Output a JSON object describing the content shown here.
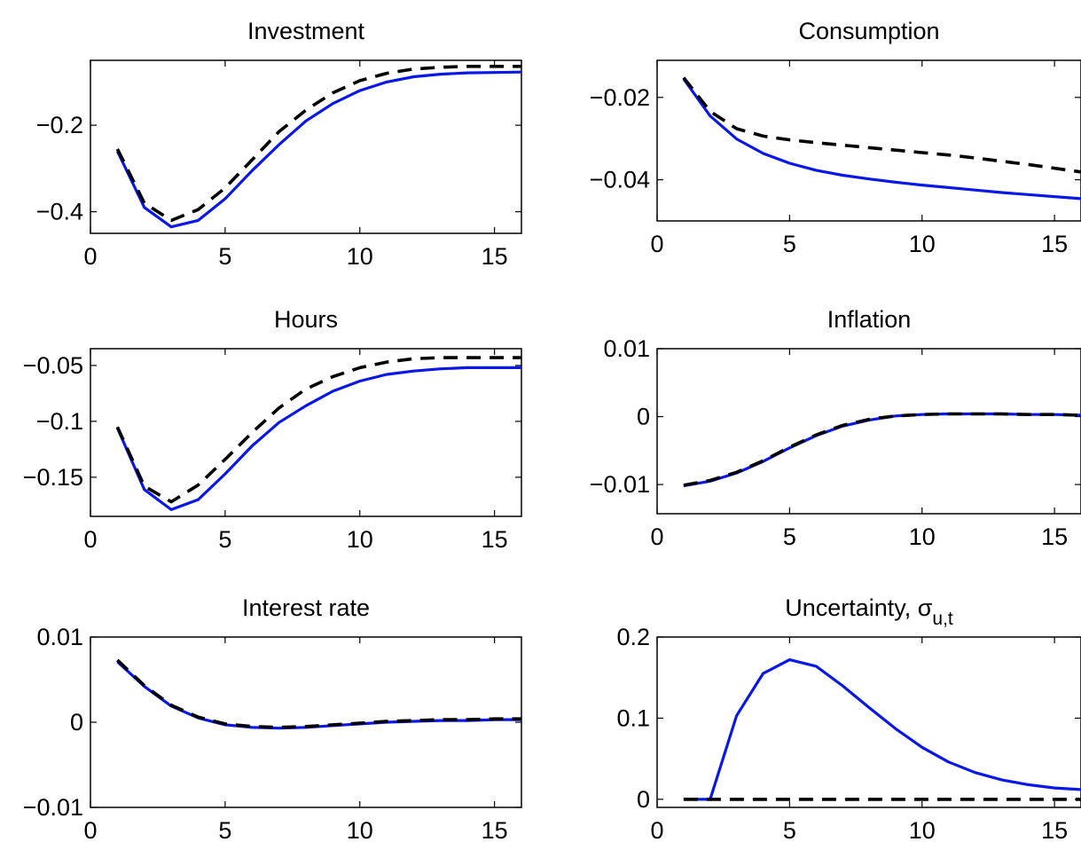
{
  "chart_data": [
    {
      "type": "line",
      "title": "Investment",
      "xlim": [
        0,
        16
      ],
      "ylim": [
        -0.45,
        -0.05
      ],
      "xticks": [
        0,
        5,
        10,
        15
      ],
      "xtick_labels": [
        "0",
        "5",
        "10",
        "15"
      ],
      "yticks": [
        -0.2,
        -0.4
      ],
      "ytick_labels": [
        "−0.2",
        "−0.4"
      ],
      "x": [
        1,
        2,
        3,
        4,
        5,
        6,
        7,
        8,
        9,
        10,
        11,
        12,
        13,
        14,
        15,
        16
      ],
      "series": [
        {
          "values": [
            -0.26,
            -0.39,
            -0.435,
            -0.42,
            -0.37,
            -0.305,
            -0.245,
            -0.19,
            -0.15,
            -0.12,
            -0.1,
            -0.088,
            -0.082,
            -0.079,
            -0.078,
            -0.077
          ],
          "style": "solid",
          "color": "#0a18e6"
        },
        {
          "values": [
            -0.255,
            -0.38,
            -0.42,
            -0.395,
            -0.345,
            -0.28,
            -0.215,
            -0.165,
            -0.125,
            -0.097,
            -0.08,
            -0.07,
            -0.066,
            -0.064,
            -0.064,
            -0.064
          ],
          "style": "dashed",
          "color": "#000000"
        }
      ]
    },
    {
      "type": "line",
      "title": "Consumption",
      "xlim": [
        0,
        16
      ],
      "ylim": [
        -0.05,
        -0.011
      ],
      "xticks": [
        0,
        5,
        10,
        15
      ],
      "xtick_labels": [
        "0",
        "5",
        "10",
        "15"
      ],
      "yticks": [
        -0.02,
        -0.04
      ],
      "ytick_labels": [
        "−0.02",
        "−0.04"
      ],
      "x": [
        1,
        2,
        3,
        4,
        5,
        6,
        7,
        8,
        9,
        10,
        11,
        12,
        13,
        14,
        15,
        16
      ],
      "series": [
        {
          "values": [
            -0.0155,
            -0.0245,
            -0.0301,
            -0.0336,
            -0.036,
            -0.0377,
            -0.0389,
            -0.0398,
            -0.0406,
            -0.0413,
            -0.0419,
            -0.0425,
            -0.0431,
            -0.0436,
            -0.0441,
            -0.0446
          ],
          "style": "solid",
          "color": "#0a18e6"
        },
        {
          "values": [
            -0.0152,
            -0.0234,
            -0.0276,
            -0.0294,
            -0.0303,
            -0.031,
            -0.0316,
            -0.0322,
            -0.0328,
            -0.0334,
            -0.034,
            -0.0347,
            -0.0355,
            -0.0363,
            -0.0372,
            -0.0381
          ],
          "style": "dashed",
          "color": "#000000"
        }
      ]
    },
    {
      "type": "line",
      "title": "Hours",
      "xlim": [
        0,
        16
      ],
      "ylim": [
        -0.185,
        -0.035
      ],
      "xticks": [
        0,
        5,
        10,
        15
      ],
      "xtick_labels": [
        "0",
        "5",
        "10",
        "15"
      ],
      "yticks": [
        -0.05,
        -0.1,
        -0.15
      ],
      "ytick_labels": [
        "−0.05",
        "−0.1",
        "−0.15"
      ],
      "x": [
        1,
        2,
        3,
        4,
        5,
        6,
        7,
        8,
        9,
        10,
        11,
        12,
        13,
        14,
        15,
        16
      ],
      "series": [
        {
          "values": [
            -0.106,
            -0.161,
            -0.179,
            -0.17,
            -0.147,
            -0.122,
            -0.101,
            -0.086,
            -0.073,
            -0.064,
            -0.058,
            -0.055,
            -0.053,
            -0.052,
            -0.052,
            -0.052
          ],
          "style": "solid",
          "color": "#0a18e6"
        },
        {
          "values": [
            -0.105,
            -0.158,
            -0.172,
            -0.157,
            -0.134,
            -0.11,
            -0.088,
            -0.071,
            -0.06,
            -0.052,
            -0.047,
            -0.044,
            -0.043,
            -0.043,
            -0.043,
            -0.043
          ],
          "style": "dashed",
          "color": "#000000"
        }
      ]
    },
    {
      "type": "line",
      "title": "Inflation",
      "xlim": [
        0,
        16
      ],
      "ylim": [
        -0.0143,
        0.01
      ],
      "xticks": [
        0,
        5,
        10,
        15
      ],
      "xtick_labels": [
        "0",
        "5",
        "10",
        "15"
      ],
      "yticks": [
        0.01,
        0,
        -0.01
      ],
      "ytick_labels": [
        "0.01",
        "0",
        "−0.01"
      ],
      "x": [
        1,
        2,
        3,
        4,
        5,
        6,
        7,
        8,
        9,
        10,
        11,
        12,
        13,
        14,
        15,
        16
      ],
      "series": [
        {
          "values": [
            -0.0102,
            -0.0095,
            -0.0083,
            -0.0066,
            -0.0046,
            -0.0028,
            -0.0014,
            -0.0005,
            0.0001,
            0.0003,
            0.0004,
            0.0004,
            0.0004,
            0.0003,
            0.0003,
            0.0002
          ],
          "style": "solid",
          "color": "#0a18e6"
        },
        {
          "values": [
            -0.0101,
            -0.0094,
            -0.0082,
            -0.0065,
            -0.0045,
            -0.0027,
            -0.0013,
            -0.0004,
            0.0001,
            0.0003,
            0.0004,
            0.0004,
            0.0004,
            0.0003,
            0.0003,
            0.0002
          ],
          "style": "dashed",
          "color": "#000000"
        }
      ]
    },
    {
      "type": "line",
      "title": "Interest rate",
      "xlim": [
        0,
        16
      ],
      "ylim": [
        -0.01,
        0.01
      ],
      "xticks": [
        0,
        5,
        10,
        15
      ],
      "xtick_labels": [
        "0",
        "5",
        "10",
        "15"
      ],
      "yticks": [
        0.01,
        0,
        -0.01
      ],
      "ytick_labels": [
        "0.01",
        "0",
        "−0.01"
      ],
      "x": [
        1,
        2,
        3,
        4,
        5,
        6,
        7,
        8,
        9,
        10,
        11,
        12,
        13,
        14,
        15,
        16
      ],
      "series": [
        {
          "values": [
            0.0071,
            0.0042,
            0.0019,
            0.0005,
            -0.0003,
            -0.0006,
            -0.0007,
            -0.0006,
            -0.0004,
            -0.0002,
            0.0,
            0.0001,
            0.0002,
            0.0002,
            0.0003,
            0.0003
          ],
          "style": "solid",
          "color": "#0a18e6"
        },
        {
          "values": [
            0.0073,
            0.0043,
            0.002,
            0.0006,
            -0.0002,
            -0.0005,
            -0.0006,
            -0.0005,
            -0.0003,
            -0.0001,
            0.0001,
            0.0002,
            0.0003,
            0.0003,
            0.0004,
            0.0004
          ],
          "style": "dashed",
          "color": "#000000"
        }
      ]
    },
    {
      "type": "line",
      "title": "Uncertainty, σ",
      "title_subscript": "u,t",
      "xlim": [
        0,
        16
      ],
      "ylim": [
        -0.01,
        0.2
      ],
      "xticks": [
        0,
        5,
        10,
        15
      ],
      "xtick_labels": [
        "0",
        "5",
        "10",
        "15"
      ],
      "yticks": [
        0.2,
        0.1,
        0
      ],
      "ytick_labels": [
        "0.2",
        "0.1",
        "0"
      ],
      "x": [
        1,
        2,
        3,
        4,
        5,
        6,
        7,
        8,
        9,
        10,
        11,
        12,
        13,
        14,
        15,
        16
      ],
      "series": [
        {
          "values": [
            0,
            0,
            0.103,
            0.155,
            0.172,
            0.164,
            0.14,
            0.113,
            0.087,
            0.064,
            0.046,
            0.033,
            0.024,
            0.018,
            0.014,
            0.012
          ],
          "style": "solid",
          "color": "#0a18e6"
        },
        {
          "values": [
            0,
            0,
            0,
            0,
            0,
            0,
            0,
            0,
            0,
            0,
            0,
            0,
            0,
            0,
            0,
            0
          ],
          "style": "dashed",
          "color": "#000000"
        }
      ]
    }
  ]
}
